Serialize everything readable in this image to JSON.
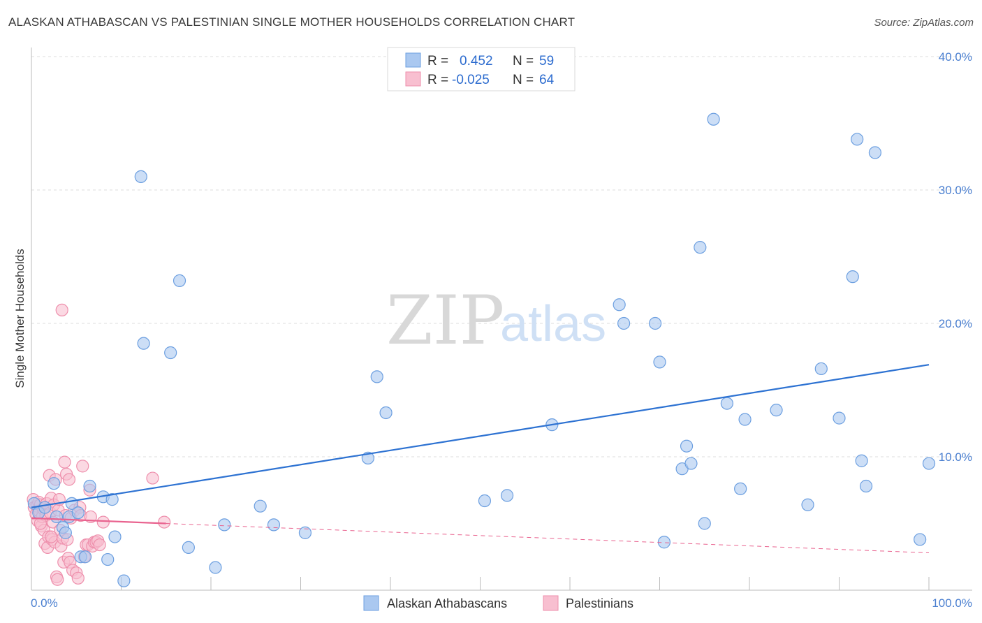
{
  "header": {
    "title": "ALASKAN ATHABASCAN VS PALESTINIAN SINGLE MOTHER HOUSEHOLDS CORRELATION CHART",
    "source": "Source: ZipAtlas.com"
  },
  "watermark": {
    "zip": "ZIP",
    "atlas": "atlas"
  },
  "legend": {
    "rows": [
      {
        "r_label": "R =",
        "r_value": "0.452",
        "n_label": "N =",
        "n_value": "59"
      },
      {
        "r_label": "R =",
        "r_value": "-0.025",
        "n_label": "N =",
        "n_value": "64"
      }
    ]
  },
  "bottom_legend": {
    "series1": "Alaskan Athabascans",
    "series2": "Palestinians"
  },
  "colors": {
    "blue_fill": "#aac8f0",
    "blue_stroke": "#6c9fe0",
    "blue_line": "#2d72d2",
    "pink_fill": "#f8bfd0",
    "pink_stroke": "#ee8fac",
    "pink_line": "#e9638f",
    "grid": "#dddddd",
    "tick": "#4a7fd0"
  },
  "chart_data": {
    "type": "scatter",
    "title": "ALASKAN ATHABASCAN VS PALESTINIAN SINGLE MOTHER HOUSEHOLDS CORRELATION CHART",
    "xlabel": "",
    "ylabel": "Single Mother Households",
    "xlim": [
      0,
      100
    ],
    "ylim": [
      0,
      42
    ],
    "x_tick_labels": [
      "0.0%",
      "100.0%"
    ],
    "y_ticks": [
      10,
      20,
      30,
      40
    ],
    "y_tick_labels": [
      "10.0%",
      "20.0%",
      "30.0%",
      "40.0%"
    ],
    "grid": true,
    "series": [
      {
        "name": "Alaskan Athabascans",
        "points": [
          [
            0.3,
            6.5
          ],
          [
            0.8,
            5.8
          ],
          [
            1.5,
            6.2
          ],
          [
            2.5,
            8.0
          ],
          [
            2.8,
            5.5
          ],
          [
            3.5,
            4.7
          ],
          [
            3.8,
            4.3
          ],
          [
            4.2,
            5.5
          ],
          [
            4.5,
            6.5
          ],
          [
            5.2,
            5.8
          ],
          [
            5.5,
            2.5
          ],
          [
            6.0,
            2.5
          ],
          [
            6.5,
            7.8
          ],
          [
            8.0,
            7.0
          ],
          [
            8.5,
            2.3
          ],
          [
            9.0,
            6.8
          ],
          [
            9.3,
            4.0
          ],
          [
            10.3,
            0.7
          ],
          [
            12.2,
            31.0
          ],
          [
            12.5,
            18.5
          ],
          [
            15.5,
            17.8
          ],
          [
            16.5,
            23.2
          ],
          [
            17.5,
            3.2
          ],
          [
            20.5,
            1.7
          ],
          [
            21.5,
            4.9
          ],
          [
            25.5,
            6.3
          ],
          [
            27.0,
            4.9
          ],
          [
            30.5,
            4.3
          ],
          [
            37.5,
            9.9
          ],
          [
            38.5,
            16.0
          ],
          [
            39.5,
            13.3
          ],
          [
            50.5,
            6.7
          ],
          [
            53.0,
            7.1
          ],
          [
            58.0,
            12.4
          ],
          [
            65.5,
            21.4
          ],
          [
            66.0,
            20.0
          ],
          [
            69.5,
            20.0
          ],
          [
            70.0,
            17.1
          ],
          [
            70.5,
            3.6
          ],
          [
            72.5,
            9.1
          ],
          [
            73.0,
            10.8
          ],
          [
            73.5,
            9.5
          ],
          [
            74.5,
            25.7
          ],
          [
            75.0,
            5.0
          ],
          [
            76.0,
            35.3
          ],
          [
            77.5,
            14.0
          ],
          [
            79.0,
            7.6
          ],
          [
            79.5,
            12.8
          ],
          [
            83.0,
            13.5
          ],
          [
            86.5,
            6.4
          ],
          [
            88.0,
            16.6
          ],
          [
            90.0,
            12.9
          ],
          [
            91.5,
            23.5
          ],
          [
            92.0,
            33.8
          ],
          [
            92.5,
            9.7
          ],
          [
            93.0,
            7.8
          ],
          [
            94.0,
            32.8
          ],
          [
            100.0,
            9.5
          ],
          [
            99.0,
            3.8
          ]
        ]
      },
      {
        "name": "Palestinians",
        "points": [
          [
            0.2,
            6.8
          ],
          [
            0.3,
            6.2
          ],
          [
            0.5,
            5.7
          ],
          [
            0.6,
            6.3
          ],
          [
            0.7,
            5.2
          ],
          [
            0.8,
            6.6
          ],
          [
            0.9,
            5.9
          ],
          [
            1.0,
            6.4
          ],
          [
            1.1,
            4.8
          ],
          [
            1.2,
            5.5
          ],
          [
            1.3,
            6.1
          ],
          [
            1.4,
            4.5
          ],
          [
            1.5,
            3.5
          ],
          [
            1.6,
            5.6
          ],
          [
            1.7,
            6.5
          ],
          [
            1.8,
            3.2
          ],
          [
            1.9,
            4.0
          ],
          [
            2.0,
            8.6
          ],
          [
            2.1,
            5.8
          ],
          [
            2.2,
            6.9
          ],
          [
            2.3,
            3.8
          ],
          [
            2.4,
            5.1
          ],
          [
            2.5,
            6.4
          ],
          [
            2.6,
            3.6
          ],
          [
            2.7,
            8.3
          ],
          [
            2.8,
            1.0
          ],
          [
            2.9,
            0.8
          ],
          [
            3.0,
            6.0
          ],
          [
            3.1,
            6.8
          ],
          [
            3.2,
            4.5
          ],
          [
            3.3,
            3.3
          ],
          [
            3.4,
            21.0
          ],
          [
            3.5,
            3.9
          ],
          [
            3.6,
            2.1
          ],
          [
            3.7,
            9.6
          ],
          [
            3.8,
            5.6
          ],
          [
            3.9,
            8.7
          ],
          [
            4.0,
            3.8
          ],
          [
            4.1,
            2.4
          ],
          [
            4.2,
            8.3
          ],
          [
            4.3,
            2.1
          ],
          [
            4.4,
            5.4
          ],
          [
            4.6,
            1.5
          ],
          [
            4.8,
            6.0
          ],
          [
            5.0,
            1.3
          ],
          [
            5.2,
            0.9
          ],
          [
            5.4,
            6.2
          ],
          [
            5.5,
            5.6
          ],
          [
            5.7,
            9.3
          ],
          [
            5.9,
            2.5
          ],
          [
            6.1,
            3.4
          ],
          [
            6.3,
            3.4
          ],
          [
            6.5,
            7.5
          ],
          [
            6.6,
            5.5
          ],
          [
            6.8,
            3.3
          ],
          [
            7.0,
            3.6
          ],
          [
            7.2,
            3.6
          ],
          [
            7.4,
            3.7
          ],
          [
            7.6,
            3.4
          ],
          [
            8.0,
            5.1
          ],
          [
            13.5,
            8.4
          ],
          [
            14.8,
            5.1
          ],
          [
            2.2,
            4.0
          ],
          [
            1.0,
            5.0
          ]
        ]
      }
    ],
    "trend_lines": [
      {
        "series": "Alaskan Athabascans",
        "x1": 0,
        "y1": 6.2,
        "x2": 100,
        "y2": 16.9,
        "style": "solid"
      },
      {
        "series": "Palestinians",
        "x1": 0,
        "y1": 5.4,
        "x2": 15,
        "y2": 5.0,
        "style": "solid"
      },
      {
        "series": "Palestinians",
        "x1": 15,
        "y1": 5.0,
        "x2": 100,
        "y2": 2.8,
        "style": "dashed"
      }
    ]
  }
}
